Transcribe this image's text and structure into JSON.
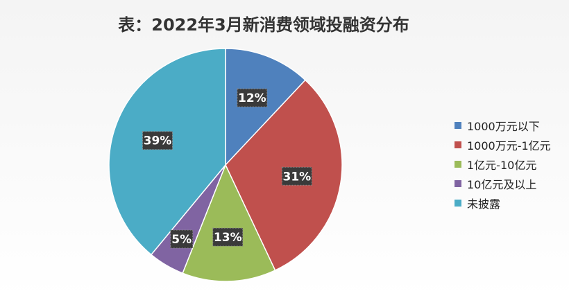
{
  "chart_data": {
    "type": "pie",
    "title": "表：2022年3月新消费领域投融资分布",
    "categories": [
      "1000万元以下",
      "1000万元-1亿元",
      "1亿元-10亿元",
      "10亿元及以上",
      "未披露"
    ],
    "values": [
      12,
      31,
      13,
      5,
      39
    ],
    "data_labels": [
      "12%",
      "31%",
      "13%",
      "5%",
      "39%"
    ],
    "colors": [
      "#4f81bd",
      "#c0504d",
      "#9bbb59",
      "#8064a2",
      "#4bacc6"
    ],
    "legend_position": "right",
    "start_angle": "12 o'clock",
    "direction": "clockwise"
  }
}
